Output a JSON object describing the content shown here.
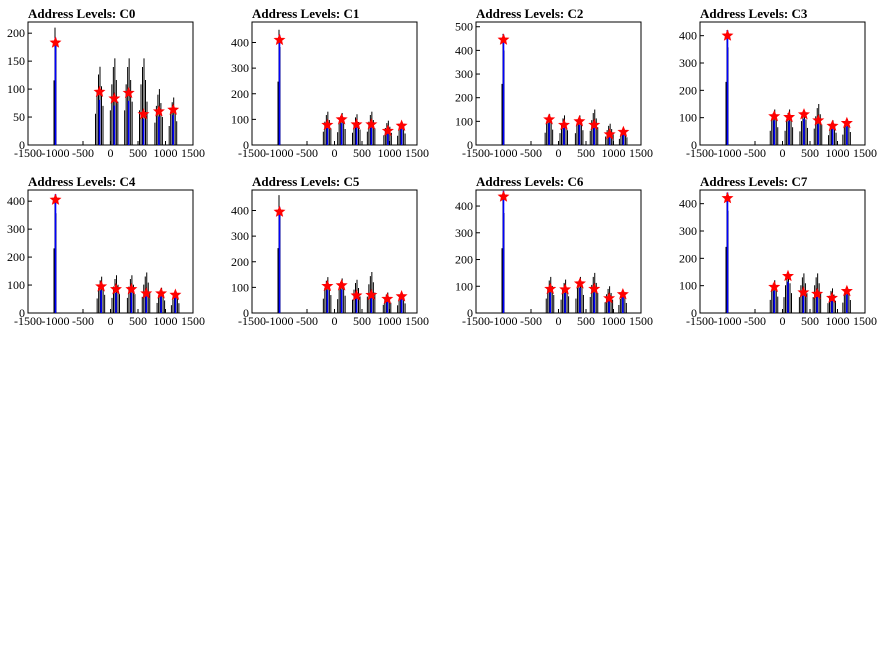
{
  "colors": {
    "histogram": "#000000",
    "fit": "#0000ff",
    "marker": "#ff0000",
    "frame": "#000000"
  },
  "chart_data": [
    {
      "type": "bar",
      "title": "Address Levels: C0",
      "xlim": [
        -1500,
        1500
      ],
      "ylim": [
        0,
        220
      ],
      "x_ticks": [
        "-1500",
        "-1000",
        "-500",
        "0",
        "500",
        "1000",
        "1500"
      ],
      "y_ticks": [
        "0",
        "50",
        "100",
        "150",
        "200"
      ],
      "y_tick_values": [
        0,
        50,
        100,
        150,
        200
      ],
      "peaks": [
        {
          "x": -1000,
          "height": 210,
          "marker": 183
        },
        {
          "x": -200,
          "height": 140,
          "marker": 95
        },
        {
          "x": 70,
          "height": 155,
          "marker": 83
        },
        {
          "x": 330,
          "height": 155,
          "marker": 93
        },
        {
          "x": 600,
          "height": 155,
          "marker": 55
        },
        {
          "x": 880,
          "height": 100,
          "marker": 60
        },
        {
          "x": 1140,
          "height": 85,
          "marker": 63
        }
      ]
    },
    {
      "type": "bar",
      "title": "Address Levels: C1",
      "xlim": [
        -1500,
        1500
      ],
      "ylim": [
        0,
        480
      ],
      "x_ticks": [
        "-1500",
        "-1000",
        "-500",
        "0",
        "500",
        "1000",
        "1500"
      ],
      "y_ticks": [
        "0",
        "100",
        "200",
        "300",
        "400"
      ],
      "y_tick_values": [
        0,
        100,
        200,
        300,
        400
      ],
      "peaks": [
        {
          "x": -1000,
          "height": 450,
          "marker": 410
        },
        {
          "x": -130,
          "height": 130,
          "marker": 78
        },
        {
          "x": 130,
          "height": 125,
          "marker": 100
        },
        {
          "x": 400,
          "height": 120,
          "marker": 80
        },
        {
          "x": 670,
          "height": 130,
          "marker": 80
        },
        {
          "x": 970,
          "height": 95,
          "marker": 55
        },
        {
          "x": 1220,
          "height": 90,
          "marker": 75
        }
      ]
    },
    {
      "type": "bar",
      "title": "Address Levels: C2",
      "xlim": [
        -1500,
        1500
      ],
      "ylim": [
        0,
        520
      ],
      "x_ticks": [
        "-1500",
        "-1000",
        "-500",
        "0",
        "500",
        "1000",
        "1500"
      ],
      "y_ticks": [
        "0",
        "100",
        "200",
        "300",
        "400",
        "500"
      ],
      "y_tick_values": [
        0,
        100,
        200,
        300,
        400,
        500
      ],
      "peaks": [
        {
          "x": -1000,
          "height": 470,
          "marker": 445
        },
        {
          "x": -170,
          "height": 130,
          "marker": 108
        },
        {
          "x": 100,
          "height": 125,
          "marker": 85
        },
        {
          "x": 380,
          "height": 125,
          "marker": 100
        },
        {
          "x": 650,
          "height": 150,
          "marker": 85
        },
        {
          "x": 930,
          "height": 90,
          "marker": 45
        },
        {
          "x": 1180,
          "height": 65,
          "marker": 55
        }
      ]
    },
    {
      "type": "bar",
      "title": "Address Levels: C3",
      "xlim": [
        -1500,
        1500
      ],
      "ylim": [
        0,
        450
      ],
      "x_ticks": [
        "-1500",
        "-1000",
        "-500",
        "0",
        "500",
        "1000",
        "1500"
      ],
      "y_ticks": [
        "0",
        "100",
        "200",
        "300",
        "400"
      ],
      "y_tick_values": [
        0,
        100,
        200,
        300,
        400
      ],
      "peaks": [
        {
          "x": -1000,
          "height": 420,
          "marker": 400
        },
        {
          "x": -150,
          "height": 130,
          "marker": 105
        },
        {
          "x": 120,
          "height": 130,
          "marker": 102
        },
        {
          "x": 390,
          "height": 125,
          "marker": 112
        },
        {
          "x": 650,
          "height": 150,
          "marker": 90
        },
        {
          "x": 910,
          "height": 90,
          "marker": 70
        },
        {
          "x": 1170,
          "height": 95,
          "marker": 80
        }
      ]
    },
    {
      "type": "bar",
      "title": "Address Levels: C4",
      "xlim": [
        -1500,
        1500
      ],
      "ylim": [
        0,
        440
      ],
      "x_ticks": [
        "-1500",
        "-1000",
        "-500",
        "0",
        "500",
        "1000",
        "1500"
      ],
      "y_ticks": [
        "0",
        "100",
        "200",
        "300",
        "400"
      ],
      "y_tick_values": [
        0,
        100,
        200,
        300,
        400
      ],
      "peaks": [
        {
          "x": -1000,
          "height": 420,
          "marker": 405
        },
        {
          "x": -170,
          "height": 130,
          "marker": 95
        },
        {
          "x": 100,
          "height": 135,
          "marker": 85
        },
        {
          "x": 380,
          "height": 135,
          "marker": 85
        },
        {
          "x": 650,
          "height": 145,
          "marker": 70
        },
        {
          "x": 920,
          "height": 90,
          "marker": 70
        },
        {
          "x": 1180,
          "height": 70,
          "marker": 65
        }
      ]
    },
    {
      "type": "bar",
      "title": "Address Levels: C5",
      "xlim": [
        -1500,
        1500
      ],
      "ylim": [
        0,
        480
      ],
      "x_ticks": [
        "-1500",
        "-1000",
        "-500",
        "0",
        "500",
        "1000",
        "1500"
      ],
      "y_ticks": [
        "0",
        "100",
        "200",
        "300",
        "400"
      ],
      "y_tick_values": [
        0,
        100,
        200,
        300,
        400
      ],
      "peaks": [
        {
          "x": -1000,
          "height": 460,
          "marker": 395
        },
        {
          "x": -130,
          "height": 140,
          "marker": 105
        },
        {
          "x": 130,
          "height": 135,
          "marker": 108
        },
        {
          "x": 400,
          "height": 130,
          "marker": 68
        },
        {
          "x": 670,
          "height": 160,
          "marker": 70
        },
        {
          "x": 960,
          "height": 80,
          "marker": 55
        },
        {
          "x": 1220,
          "height": 75,
          "marker": 65
        }
      ]
    },
    {
      "type": "bar",
      "title": "Address Levels: C6",
      "xlim": [
        -1500,
        1500
      ],
      "ylim": [
        0,
        460
      ],
      "x_ticks": [
        "-1500",
        "-1000",
        "-500",
        "0",
        "500",
        "1000",
        "1500"
      ],
      "y_ticks": [
        "0",
        "100",
        "200",
        "300",
        "400"
      ],
      "y_tick_values": [
        0,
        100,
        200,
        300,
        400
      ],
      "peaks": [
        {
          "x": -1000,
          "height": 440,
          "marker": 435
        },
        {
          "x": -150,
          "height": 135,
          "marker": 90
        },
        {
          "x": 120,
          "height": 125,
          "marker": 88
        },
        {
          "x": 390,
          "height": 135,
          "marker": 110
        },
        {
          "x": 650,
          "height": 150,
          "marker": 90
        },
        {
          "x": 920,
          "height": 100,
          "marker": 55
        },
        {
          "x": 1170,
          "height": 75,
          "marker": 70
        }
      ]
    },
    {
      "type": "bar",
      "title": "Address Levels: C7",
      "xlim": [
        -1500,
        1500
      ],
      "ylim": [
        0,
        450
      ],
      "x_ticks": [
        "-1500",
        "-1000",
        "-500",
        "0",
        "500",
        "1000",
        "1500"
      ],
      "y_ticks": [
        "0",
        "100",
        "200",
        "300",
        "400"
      ],
      "y_tick_values": [
        0,
        100,
        200,
        300,
        400
      ],
      "peaks": [
        {
          "x": -1000,
          "height": 440,
          "marker": 420
        },
        {
          "x": -150,
          "height": 120,
          "marker": 95
        },
        {
          "x": 100,
          "height": 145,
          "marker": 135
        },
        {
          "x": 380,
          "height": 145,
          "marker": 75
        },
        {
          "x": 630,
          "height": 145,
          "marker": 70
        },
        {
          "x": 900,
          "height": 90,
          "marker": 55
        },
        {
          "x": 1170,
          "height": 95,
          "marker": 80
        }
      ]
    }
  ]
}
